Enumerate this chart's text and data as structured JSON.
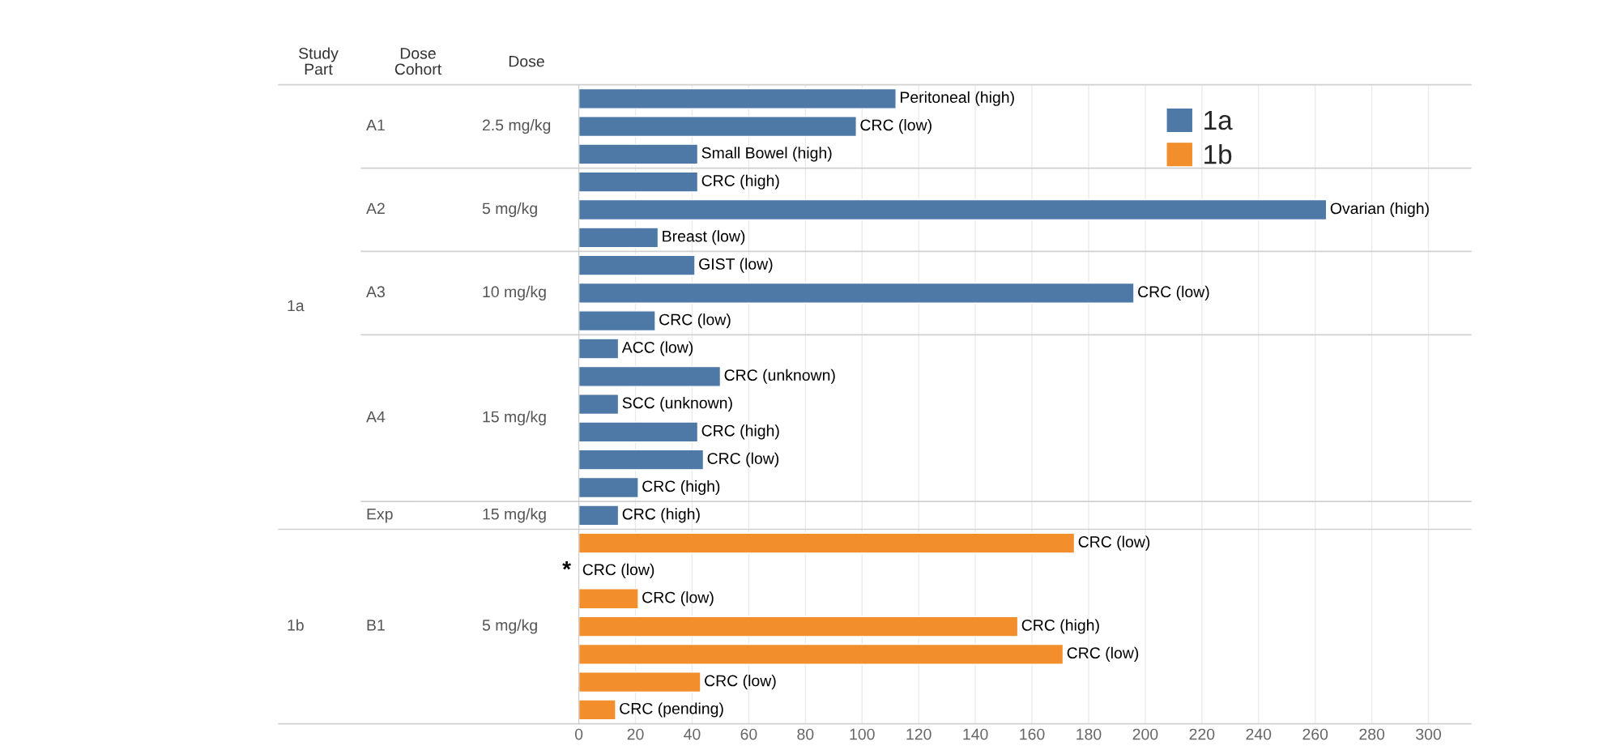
{
  "chart_data": {
    "type": "bar",
    "orientation": "horizontal",
    "categories": [
      null,
      null,
      null,
      null,
      null,
      null,
      null,
      null,
      null,
      null,
      null,
      null,
      null,
      null,
      null,
      null,
      null,
      null,
      null,
      null,
      null,
      null,
      null
    ],
    "series": [
      {
        "name": "1a",
        "color": "#4e79a7",
        "values": [
          112,
          98,
          42,
          42,
          264,
          28,
          41,
          196,
          27,
          14,
          50,
          14,
          42,
          44,
          21,
          14,
          null,
          null,
          null,
          null,
          null,
          null,
          null
        ],
        "value_labels": [
          "Peritoneal (high)",
          "CRC (low)",
          "Small Bowel (high)",
          "CRC (high)",
          "Ovarian (high)",
          "Breast (low)",
          "GIST (low)",
          "CRC (low)",
          "CRC (low)",
          "ACC (low)",
          "CRC (unknown)",
          "SCC (unknown)",
          "CRC (high)",
          "CRC (low)",
          "CRC (high)",
          "CRC (high)",
          null,
          null,
          null,
          null,
          null,
          null,
          null
        ]
      },
      {
        "name": "1b",
        "color": "#f28e2b",
        "values": [
          null,
          null,
          null,
          null,
          null,
          null,
          null,
          null,
          null,
          null,
          null,
          null,
          null,
          null,
          null,
          null,
          175,
          null,
          21,
          155,
          171,
          43,
          13
        ],
        "value_labels": [
          null,
          null,
          null,
          null,
          null,
          null,
          null,
          null,
          null,
          null,
          null,
          null,
          null,
          null,
          null,
          null,
          "CRC (low)",
          "CRC (low)",
          "CRC (low)",
          "CRC (high)",
          "CRC (low)",
          "CRC (low)",
          "CRC (pending)"
        ]
      }
    ],
    "xlim": [
      0,
      315
    ],
    "xticks": [
      0,
      20,
      40,
      60,
      80,
      100,
      120,
      140,
      160,
      180,
      200,
      220,
      240,
      260,
      280,
      300
    ],
    "grid": "x",
    "legend": "top right",
    "annotations": [
      "Study\nPart",
      "Dose\nCohort",
      "Dose",
      "1a",
      "A1",
      "2.5 mg/kg",
      "A2",
      "5 mg/kg",
      "A3",
      "10 mg/kg",
      "A4",
      "15 mg/kg",
      "Exp",
      "15 mg/kg",
      "1b",
      "B1",
      "5 mg/kg",
      "*"
    ]
  }
}
